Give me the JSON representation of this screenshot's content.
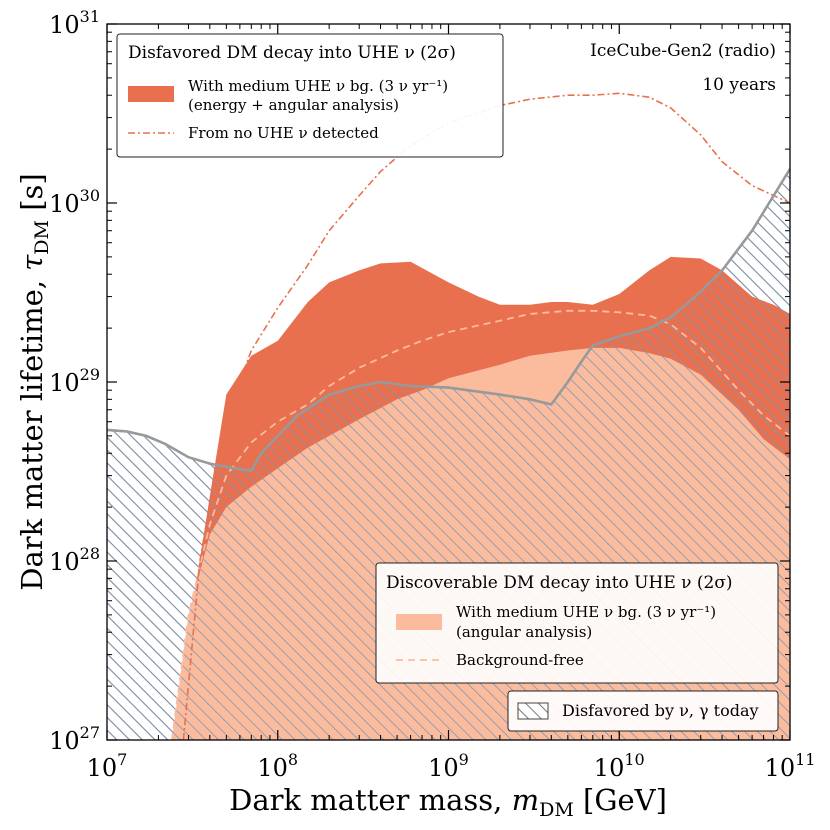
{
  "chart_data": {
    "type": "area",
    "xscale": "log",
    "yscale": "log",
    "xlim": [
      10000000.0,
      100000000000.0
    ],
    "ylim": [
      1e+27,
      1e+31
    ],
    "xlabel_prefix": "Dark matter mass, ",
    "xlabel_symbol": "m",
    "xlabel_sub": "DM",
    "xlabel_unit": " [GeV]",
    "ylabel_prefix": "Dark matter lifetime, ",
    "ylabel_symbol": "τ",
    "ylabel_sub": "DM",
    "ylabel_unit": " [s]",
    "x_ticks": [
      {
        "value": 10000000.0,
        "base": "10",
        "exp": "7"
      },
      {
        "value": 100000000.0,
        "base": "10",
        "exp": "8"
      },
      {
        "value": 1000000000.0,
        "base": "10",
        "exp": "9"
      },
      {
        "value": 10000000000.0,
        "base": "10",
        "exp": "10"
      },
      {
        "value": 100000000000.0,
        "base": "10",
        "exp": "11"
      }
    ],
    "y_ticks": [
      {
        "value": 1e+27,
        "base": "10",
        "exp": "27"
      },
      {
        "value": 1e+28,
        "base": "10",
        "exp": "28"
      },
      {
        "value": 1e+29,
        "base": "10",
        "exp": "29"
      },
      {
        "value": 1e+30,
        "base": "10",
        "exp": "30"
      },
      {
        "value": 1e+31,
        "base": "10",
        "exp": "31"
      }
    ],
    "annotations": [
      "IceCube-Gen2 (radio)",
      "10 years"
    ],
    "legend_disfavored": {
      "title": "Disfavored DM decay into UHE ν (2σ)",
      "entry1_line1": "With medium UHE ν bg. (3 ν yr⁻¹)",
      "entry1_line2": "(energy + angular analysis)",
      "entry2": "From no UHE ν detected"
    },
    "legend_discoverable": {
      "title": "Discoverable DM decay into UHE ν (2σ)",
      "entry1_line1": "With medium UHE ν bg. (3 ν yr⁻¹)",
      "entry1_line2": "(angular analysis)",
      "entry2": "Background-free"
    },
    "legend_existing": {
      "entry": "Disfavored by ν, γ today"
    },
    "colors": {
      "disfavored": "#e8704f",
      "discoverable": "#fbbc9e",
      "existing_line": "#999999",
      "hatch_dark": "#555555",
      "hatch_blue": "#7b96b8"
    },
    "series": [
      {
        "name": "Disfavored by ν, γ today",
        "style": "hatched-region-boundary",
        "x": [
          10000000.0,
          13000000.0,
          17000000.0,
          22000000.0,
          30000000.0,
          40000000.0,
          55000000.0,
          70000000.0,
          80000000.0,
          100000000.0,
          130000000.0,
          200000000.0,
          300000000.0,
          400000000.0,
          600000000.0,
          1000000000.0,
          2000000000.0,
          3000000000.0,
          4000000000.0,
          5000000000.0,
          6000000000.0,
          7000000000.0,
          10000000000.0,
          15000000000.0,
          20000000000.0,
          30000000000.0,
          40000000000.0,
          60000000000.0,
          100000000000.0
        ],
        "y": [
          5.4e+28,
          5.3e+28,
          5e+28,
          4.5e+28,
          3.8e+28,
          3.5e+28,
          3.3e+28,
          3.2e+28,
          4e+28,
          5e+28,
          6.5e+28,
          8.5e+28,
          9.5e+28,
          1e+29,
          9.5e+28,
          9.3e+28,
          8.5e+28,
          8e+28,
          7.5e+28,
          1e+29,
          1.3e+29,
          1.6e+29,
          1.8e+29,
          2e+29,
          2.3e+29,
          3.2e+29,
          4.2e+29,
          7e+29,
          1.55e+30
        ]
      },
      {
        "name": "With medium UHE ν bg. (3 ν yr⁻¹) (energy + angular analysis)",
        "style": "filled-band",
        "x": [
          24000000.0,
          30000000.0,
          40000000.0,
          50000000.0,
          70000000.0,
          100000000.0,
          150000000.0,
          200000000.0,
          300000000.0,
          400000000.0,
          600000000.0,
          1000000000.0,
          1500000000.0,
          2000000000.0,
          3000000000.0,
          4000000000.0,
          5000000000.0,
          7000000000.0,
          10000000000.0,
          15000000000.0,
          20000000000.0,
          30000000000.0,
          40000000000.0,
          60000000000.0,
          80000000000.0,
          100000000000.0
        ],
        "y": [
          1e+27,
          4e+27,
          2.3e+28,
          8.5e+28,
          1.4e+29,
          1.7e+29,
          2.8e+29,
          3.6e+29,
          4.2e+29,
          4.6e+29,
          4.7e+29,
          3.6e+29,
          3e+29,
          2.7e+29,
          2.7e+29,
          2.8e+29,
          2.8e+29,
          2.7e+29,
          3.1e+29,
          4.2e+29,
          5e+29,
          4.9e+29,
          4.2e+29,
          3e+29,
          2.7e+29,
          2.4e+29
        ]
      },
      {
        "name": "From no UHE ν detected",
        "style": "dash-dot-line",
        "x": [
          28000000.0,
          35000000.0,
          45000000.0,
          55000000.0,
          70000000.0,
          100000000.0,
          150000000.0,
          200000000.0,
          300000000.0,
          400000000.0,
          600000000.0,
          1000000000.0,
          2000000000.0,
          3000000000.0,
          5000000000.0,
          7000000000.0,
          10000000000.0,
          15000000000.0,
          20000000000.0,
          30000000000.0,
          40000000000.0,
          60000000000.0,
          100000000000.0
        ],
        "y": [
          1e+27,
          1e+28,
          4e+28,
          8e+28,
          1.5e+29,
          2.6e+29,
          4.5e+29,
          7e+29,
          1.1e+30,
          1.5e+30,
          2.1e+30,
          2.8e+30,
          3.5e+30,
          3.8e+30,
          4e+30,
          4e+30,
          4.1e+30,
          3.9e+30,
          3.4e+30,
          2.4e+30,
          1.7e+30,
          1.25e+30,
          1e+30
        ]
      },
      {
        "name": "With medium UHE ν bg. (3 ν yr⁻¹) (angular analysis)",
        "style": "filled-band",
        "x": [
          24000000.0,
          30000000.0,
          40000000.0,
          50000000.0,
          70000000.0,
          100000000.0,
          150000000.0,
          200000000.0,
          300000000.0,
          500000000.0,
          700000000.0,
          1000000000.0,
          2000000000.0,
          3000000000.0,
          5000000000.0,
          7000000000.0,
          10000000000.0,
          15000000000.0,
          20000000000.0,
          30000000000.0,
          50000000000.0,
          70000000000.0,
          100000000000.0
        ],
        "y": [
          1e+27,
          5e+27,
          1.4e+28,
          2e+28,
          2.6e+28,
          3.3e+28,
          4.3e+28,
          5e+28,
          6.2e+28,
          8e+28,
          9e+28,
          1.05e+29,
          1.25e+29,
          1.4e+29,
          1.5e+29,
          1.55e+29,
          1.55e+29,
          1.45e+29,
          1.35e+29,
          1.1e+29,
          7e+28,
          4.8e+28,
          3.7e+28
        ]
      },
      {
        "name": "Background-free",
        "style": "dashed-line",
        "x": [
          24000000.0,
          30000000.0,
          40000000.0,
          50000000.0,
          70000000.0,
          100000000.0,
          150000000.0,
          200000000.0,
          300000000.0,
          500000000.0,
          700000000.0,
          1000000000.0,
          2000000000.0,
          3000000000.0,
          5000000000.0,
          7000000000.0,
          10000000000.0,
          15000000000.0,
          20000000000.0,
          30000000000.0,
          50000000000.0,
          70000000000.0,
          100000000000.0
        ],
        "y": [
          1e+27,
          5e+27,
          1.6e+28,
          3e+28,
          4.6e+28,
          6e+28,
          7.5e+28,
          9.5e+28,
          1.2e+29,
          1.5e+29,
          1.7e+29,
          1.9e+29,
          2.2e+29,
          2.4e+29,
          2.5e+29,
          2.5e+29,
          2.45e+29,
          2.35e+29,
          2.1e+29,
          1.55e+29,
          9e+28,
          6.5e+28,
          5e+28
        ]
      }
    ]
  }
}
